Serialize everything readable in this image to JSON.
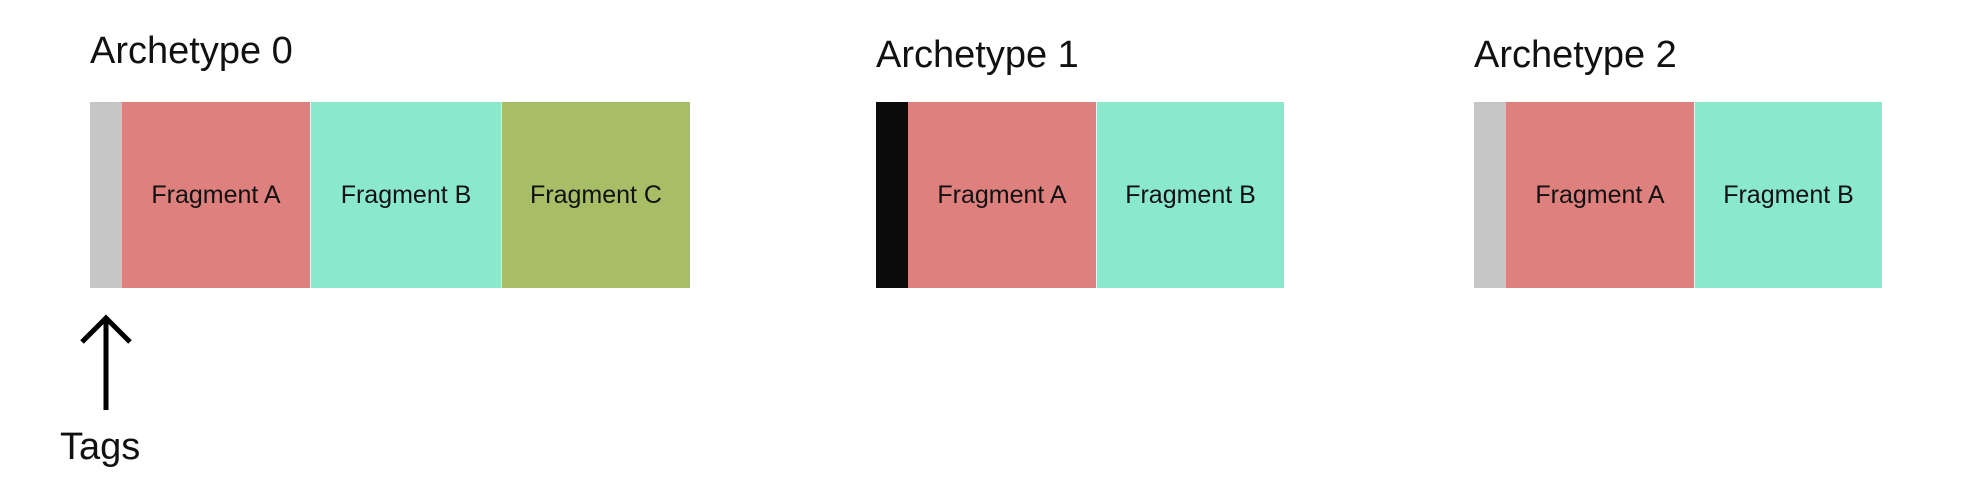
{
  "colors": {
    "fragment_a": "#de807e",
    "fragment_b": "#8ae8cd",
    "fragment_c": "#a7bd66",
    "tag_light": "#c6c6c6",
    "tag_dark": "#0b0b0b"
  },
  "archetypes": [
    {
      "title": "Archetype 0",
      "tag_color": "light",
      "fragments": [
        "Fragment A",
        "Fragment B",
        "Fragment C"
      ]
    },
    {
      "title": "Archetype 1",
      "tag_color": "dark",
      "fragments": [
        "Fragment A",
        "Fragment B"
      ]
    },
    {
      "title": "Archetype 2",
      "tag_color": "light",
      "fragments": [
        "Fragment A",
        "Fragment B"
      ]
    }
  ],
  "annotation": {
    "label": "Tags",
    "icon": "up-arrow-icon"
  }
}
